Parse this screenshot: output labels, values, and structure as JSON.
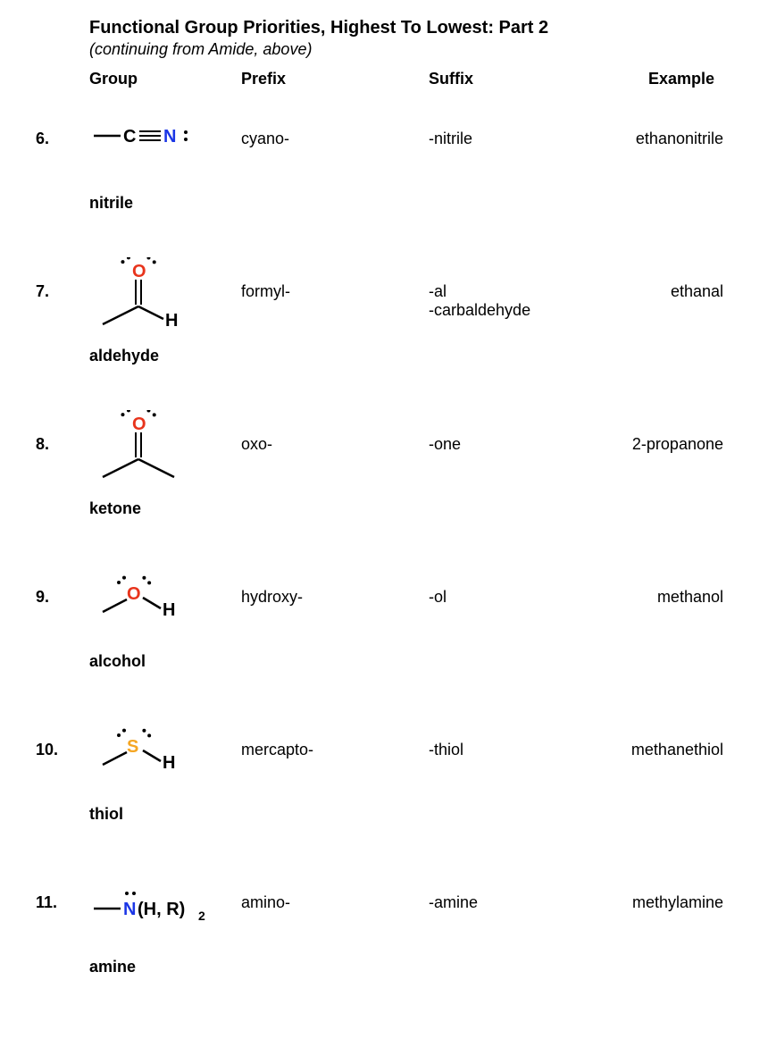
{
  "title": "Functional Group Priorities, Highest To Lowest: Part 2",
  "subtitle": "(continuing from Amide, above)",
  "columns": {
    "group": "Group",
    "prefix": "Prefix",
    "suffix": "Suffix",
    "example": "Example"
  },
  "colors": {
    "oxygen": "#e8341c",
    "nitrogen": "#1b36e6",
    "sulfur": "#f5a623",
    "carbon": "#000000",
    "text": "#000000"
  },
  "rows": [
    {
      "num": "6.",
      "name": "nitrile",
      "prefix": "cyano-",
      "suffix": [
        "-nitrile"
      ],
      "example": "ethanonitrile",
      "structure": {
        "type": "nitrile"
      }
    },
    {
      "num": "7.",
      "name": "aldehyde",
      "prefix": "formyl-",
      "suffix": [
        "-al",
        "-carbaldehyde"
      ],
      "example": "ethanal",
      "structure": {
        "type": "aldehyde"
      }
    },
    {
      "num": "8.",
      "name": "ketone",
      "prefix": "oxo-",
      "suffix": [
        "-one"
      ],
      "example": "2-propanone",
      "structure": {
        "type": "ketone"
      }
    },
    {
      "num": "9.",
      "name": "alcohol",
      "prefix": "hydroxy-",
      "suffix": [
        "-ol"
      ],
      "example": "methanol",
      "structure": {
        "type": "alcohol"
      }
    },
    {
      "num": "10.",
      "name": "thiol",
      "prefix": "mercapto-",
      "suffix": [
        "-thiol"
      ],
      "example": "methanethiol",
      "structure": {
        "type": "thiol"
      }
    },
    {
      "num": "11.",
      "name": "amine",
      "prefix": "amino-",
      "suffix": [
        "-amine"
      ],
      "example": "methylamine",
      "structure": {
        "type": "amine"
      }
    }
  ],
  "font": {
    "title_size": 20,
    "body_size": 18
  }
}
